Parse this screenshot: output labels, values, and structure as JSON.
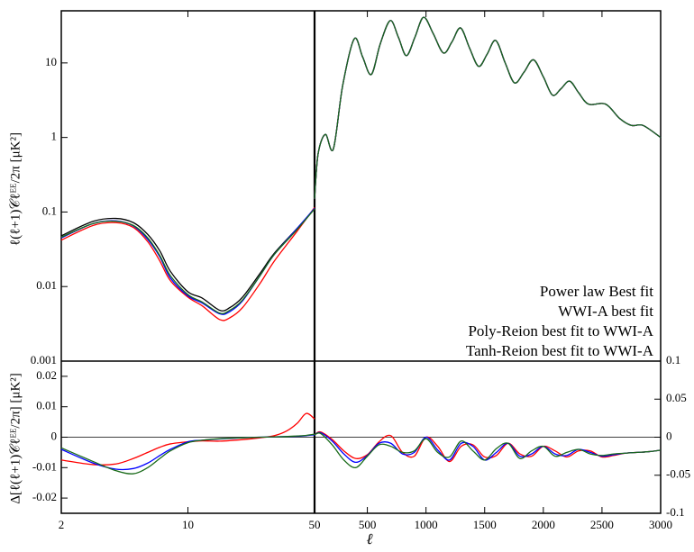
{
  "chart_data": [
    {
      "type": "line",
      "log_x": true,
      "log_y": true,
      "ylabel": "ℓ(ℓ+1)𝒞ℓᴱᴱ/2π [μK²]",
      "xlim": [
        2,
        50
      ],
      "ylim": [
        0.001,
        50
      ],
      "yticks": [
        0.001,
        0.01,
        0.1,
        1,
        10
      ],
      "x": [
        2,
        3,
        4,
        5,
        6,
        7,
        8,
        10,
        12,
        15,
        17,
        20,
        25,
        30,
        40,
        50
      ],
      "series": [
        {
          "color": "#000000",
          "values": [
            0.048,
            0.075,
            0.082,
            0.072,
            0.05,
            0.03,
            0.016,
            0.0085,
            0.007,
            0.0048,
            0.0052,
            0.0072,
            0.015,
            0.028,
            0.06,
            0.11
          ]
        },
        {
          "color": "#ff0000",
          "values": [
            0.042,
            0.066,
            0.072,
            0.062,
            0.04,
            0.022,
            0.012,
            0.0072,
            0.0055,
            0.0036,
            0.0038,
            0.0052,
            0.011,
            0.022,
            0.055,
            0.115
          ]
        },
        {
          "color": "#0000ff",
          "values": [
            0.045,
            0.07,
            0.076,
            0.065,
            0.043,
            0.025,
            0.013,
            0.0075,
            0.006,
            0.0043,
            0.0046,
            0.0064,
            0.014,
            0.027,
            0.06,
            0.112
          ]
        },
        {
          "color": "#1a6b1a",
          "values": [
            0.046,
            0.07,
            0.075,
            0.066,
            0.045,
            0.026,
            0.014,
            0.0078,
            0.0062,
            0.0044,
            0.0048,
            0.0066,
            0.014,
            0.027,
            0.058,
            0.11
          ]
        }
      ]
    },
    {
      "type": "line",
      "log_y": true,
      "xlim": [
        50,
        3000
      ],
      "ylim": [
        0.001,
        50
      ],
      "legend": "lower right",
      "x": [
        50,
        80,
        142,
        210,
        290,
        388,
        460,
        534,
        610,
        695,
        765,
        833,
        905,
        979,
        1060,
        1148,
        1220,
        1294,
        1370,
        1448,
        1520,
        1594,
        1675,
        1754,
        1835,
        1916,
        2000,
        2078,
        2150,
        2224,
        2300,
        2385,
        2531,
        2650,
        2750,
        2850,
        3000
      ],
      "series": [
        {
          "name": "Power law Best fit",
          "color": "#000000",
          "values": [
            0.15,
            0.6,
            1.1,
            0.7,
            5,
            21,
            12,
            7,
            18,
            37,
            22,
            12.5,
            22,
            41,
            25,
            13.6,
            19,
            29.5,
            16,
            9,
            13,
            20,
            10,
            5.4,
            7.5,
            11,
            6.5,
            3.7,
            4.5,
            5.7,
            4,
            2.8,
            2.8,
            1.8,
            1.45,
            1.45,
            1.0
          ]
        },
        {
          "name": "WWI-A best fit",
          "color": "#ff0000",
          "values": [
            0.15,
            0.6,
            1.1,
            0.7,
            5,
            21,
            12,
            7,
            18,
            37,
            22,
            12.5,
            22,
            41,
            25,
            13.6,
            19,
            29.5,
            16,
            9,
            13,
            20,
            10,
            5.4,
            7.5,
            11,
            6.5,
            3.7,
            4.5,
            5.7,
            4,
            2.8,
            2.8,
            1.8,
            1.45,
            1.45,
            1.0
          ]
        },
        {
          "name": "Poly-Reion best fit to WWI-A",
          "color": "#0000ff",
          "values": [
            0.15,
            0.6,
            1.1,
            0.7,
            5,
            21,
            12,
            7,
            18,
            37,
            22,
            12.5,
            22,
            41,
            25,
            13.6,
            19,
            29.5,
            16,
            9,
            13,
            20,
            10,
            5.4,
            7.5,
            11,
            6.5,
            3.7,
            4.5,
            5.7,
            4,
            2.8,
            2.8,
            1.8,
            1.45,
            1.45,
            1.0
          ]
        },
        {
          "name": "Tanh-Reion best fit to WWI-A",
          "color": "#1a6b1a",
          "values": [
            0.15,
            0.6,
            1.1,
            0.7,
            5,
            21,
            12,
            7,
            18,
            37,
            22,
            12.5,
            22,
            41,
            25,
            13.6,
            19,
            29.5,
            16,
            9,
            13,
            20,
            10,
            5.4,
            7.5,
            11,
            6.5,
            3.7,
            4.5,
            5.7,
            4,
            2.8,
            2.8,
            1.8,
            1.45,
            1.45,
            1.0
          ]
        }
      ]
    },
    {
      "type": "line",
      "log_x": true,
      "ylabel": "Δ[ℓ(ℓ+1)𝒞ℓᴱᴱ/2π] [μK²]",
      "xlim": [
        2,
        50
      ],
      "ylim": [
        -0.025,
        0.025
      ],
      "yticks": [
        -0.02,
        -0.01,
        0,
        0.01,
        0.02
      ],
      "xticks": [
        2,
        10,
        50
      ],
      "x": [
        2,
        3,
        4,
        5,
        6,
        7,
        8,
        10,
        12,
        15,
        20,
        25,
        30,
        35,
        40,
        45,
        50
      ],
      "series": [
        {
          "color": "#ff0000",
          "values": [
            -0.0075,
            -0.009,
            -0.0088,
            -0.007,
            -0.005,
            -0.0033,
            -0.0022,
            -0.0015,
            -0.0012,
            -0.0013,
            -0.0008,
            -0.0002,
            0.0005,
            0.002,
            0.0045,
            0.0078,
            0.006
          ]
        },
        {
          "color": "#0000ff",
          "values": [
            -0.004,
            -0.0085,
            -0.0105,
            -0.0103,
            -0.0085,
            -0.006,
            -0.004,
            -0.0015,
            -0.001,
            -0.0006,
            -0.0002,
            0,
            0.0001,
            0.0002,
            0.0003,
            0.0005,
            0.0008
          ]
        },
        {
          "color": "#1a6b1a",
          "values": [
            -0.0035,
            -0.008,
            -0.011,
            -0.012,
            -0.01,
            -0.007,
            -0.0045,
            -0.0018,
            -0.001,
            -0.0005,
            -0.0002,
            0,
            0.0001,
            0.0002,
            0.0004,
            0.0006,
            0.001
          ]
        }
      ]
    },
    {
      "type": "line",
      "xlabel": "ℓ",
      "xlim": [
        50,
        3000
      ],
      "y2lim": [
        -0.1,
        0.1
      ],
      "y2ticks": [
        -0.1,
        -0.05,
        0,
        0.05,
        0.1
      ],
      "xticks": [
        500,
        1000,
        1500,
        2000,
        2500,
        3000
      ],
      "x": [
        50,
        100,
        200,
        300,
        400,
        500,
        600,
        700,
        800,
        900,
        1000,
        1100,
        1200,
        1300,
        1400,
        1500,
        1600,
        1700,
        1800,
        1900,
        2000,
        2100,
        2200,
        2300,
        2400,
        2500,
        2600,
        2700,
        2800,
        2900,
        3000
      ],
      "series": [
        {
          "axis": "y2",
          "color": "#ff0000",
          "values": [
            0.003,
            0.007,
            -0.003,
            -0.018,
            -0.028,
            -0.023,
            -0.006,
            0.002,
            -0.02,
            -0.025,
            0,
            -0.012,
            -0.032,
            -0.012,
            -0.01,
            -0.026,
            -0.024,
            -0.008,
            -0.022,
            -0.025,
            -0.012,
            -0.018,
            -0.026,
            -0.018,
            -0.018,
            -0.026,
            -0.024,
            -0.021,
            -0.02,
            -0.019,
            -0.017
          ]
        },
        {
          "axis": "y2",
          "color": "#0000ff",
          "values": [
            0.003,
            0.006,
            -0.005,
            -0.022,
            -0.033,
            -0.024,
            -0.008,
            -0.008,
            -0.022,
            -0.02,
            0,
            -0.017,
            -0.03,
            -0.008,
            -0.012,
            -0.03,
            -0.02,
            -0.008,
            -0.025,
            -0.022,
            -0.012,
            -0.022,
            -0.024,
            -0.016,
            -0.02,
            -0.025,
            -0.023,
            -0.021,
            -0.02,
            -0.019,
            -0.017
          ]
        },
        {
          "axis": "y2",
          "color": "#1a6b1a",
          "values": [
            0.003,
            0.005,
            -0.01,
            -0.03,
            -0.04,
            -0.025,
            -0.01,
            -0.012,
            -0.02,
            -0.018,
            -0.002,
            -0.02,
            -0.026,
            -0.005,
            -0.018,
            -0.03,
            -0.015,
            -0.008,
            -0.028,
            -0.018,
            -0.012,
            -0.025,
            -0.02,
            -0.016,
            -0.022,
            -0.024,
            -0.022,
            -0.021,
            -0.02,
            -0.019,
            -0.017
          ]
        }
      ]
    }
  ]
}
